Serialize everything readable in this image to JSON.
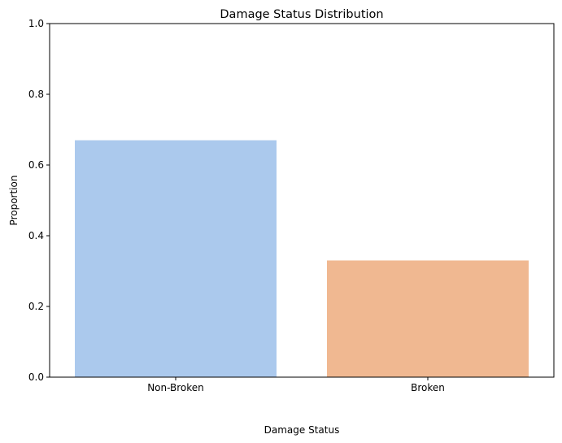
{
  "chart_data": {
    "type": "bar",
    "title": "Damage Status Distribution",
    "xlabel": "Damage Status",
    "ylabel": "Proportion",
    "categories": [
      "Non-Broken",
      "Broken"
    ],
    "values": [
      0.67,
      0.33
    ],
    "colors": [
      "#abc9ed",
      "#f0b891"
    ],
    "ylim": [
      0,
      1.0
    ],
    "yticks": [
      "0.0",
      "0.2",
      "0.4",
      "0.6",
      "0.8",
      "1.0"
    ],
    "grid": false
  }
}
